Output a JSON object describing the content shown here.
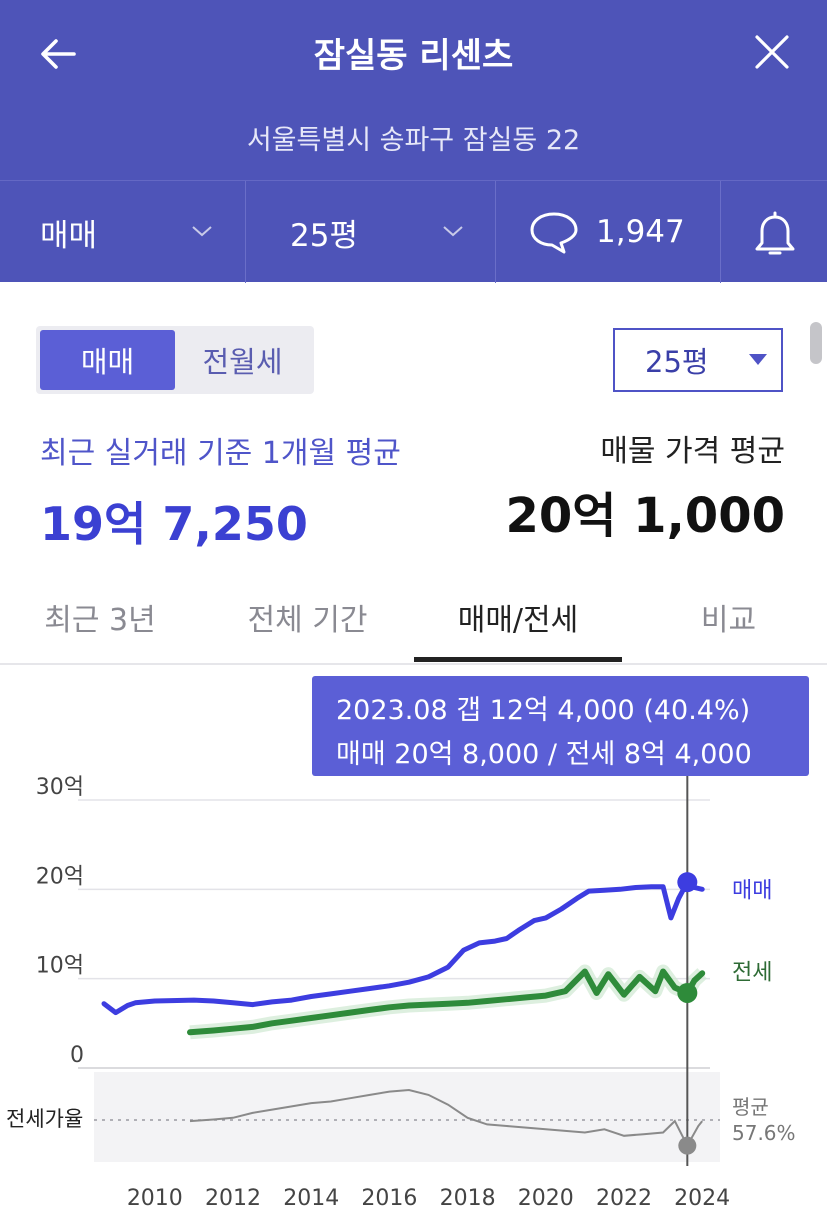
{
  "header": {
    "title": "잠실동 리센츠",
    "address": "서울특별시 송파구 잠실동 22",
    "back_icon": "arrow-left-icon",
    "close_icon": "close-icon",
    "trade_type": "매매",
    "size": "25평",
    "comment_count": "1,947",
    "comment_icon": "speech-bubble-icon",
    "bell_icon": "bell-icon",
    "bg_color": "#4e54b8"
  },
  "controls": {
    "seg_sale": "매매",
    "seg_lease": "전월세",
    "size_select": "25평"
  },
  "summary": {
    "recent_label": "최근 실거래 기준 1개월 평균",
    "recent_value": "19억 7,250",
    "listing_label": "매물 가격 평균",
    "listing_value": "20억 1,000"
  },
  "tabs": [
    {
      "label": "최근 3년"
    },
    {
      "label": "전체 기간"
    },
    {
      "label": "매매/전세",
      "active": true
    },
    {
      "label": "비교"
    }
  ],
  "tooltip": {
    "line1": "2023.08  갭 12억 4,000 (40.4%)",
    "line2": "매매 20억 8,000 / 전세 8억 4,000",
    "bg_color": "#5b5fd6"
  },
  "chart_data": {
    "type": "line",
    "y_ticks": [
      "30억",
      "20억",
      "10억",
      "0"
    ],
    "ylim": [
      0,
      30
    ],
    "x_ticks": [
      "2010",
      "2012",
      "2014",
      "2016",
      "2018",
      "2020",
      "2022",
      "2024"
    ],
    "xlim": [
      2008.7,
      2024.2
    ],
    "grid": true,
    "highlight_x": 2023.62,
    "series": [
      {
        "name": "매매",
        "color": "#3d3de0",
        "x": [
          2008.7,
          2009.0,
          2009.3,
          2009.5,
          2010.0,
          2011.0,
          2011.5,
          2012.0,
          2012.5,
          2013.0,
          2013.5,
          2014.0,
          2014.5,
          2015.0,
          2015.5,
          2016.0,
          2016.5,
          2017.0,
          2017.5,
          2017.9,
          2018.3,
          2018.7,
          2019.0,
          2019.3,
          2019.7,
          2020.0,
          2020.4,
          2020.8,
          2021.1,
          2021.5,
          2021.9,
          2022.3,
          2022.7,
          2023.0,
          2023.2,
          2023.4,
          2023.62,
          2023.8,
          2024.0
        ],
        "values": [
          7.2,
          6.2,
          7.0,
          7.3,
          7.5,
          7.6,
          7.5,
          7.3,
          7.1,
          7.4,
          7.6,
          8.0,
          8.3,
          8.6,
          8.9,
          9.2,
          9.6,
          10.2,
          11.3,
          13.2,
          14.0,
          14.2,
          14.5,
          15.4,
          16.5,
          16.8,
          17.8,
          19.0,
          19.8,
          19.9,
          20.0,
          20.2,
          20.3,
          20.3,
          16.8,
          19.0,
          20.8,
          20.2,
          20.0
        ]
      },
      {
        "name": "전세",
        "color": "#2e8b3a",
        "x": [
          2010.9,
          2011.5,
          2012.0,
          2012.5,
          2013.0,
          2013.5,
          2014.0,
          2014.5,
          2015.0,
          2015.5,
          2016.0,
          2016.5,
          2017.0,
          2017.5,
          2018.0,
          2018.5,
          2019.0,
          2019.5,
          2020.0,
          2020.5,
          2021.0,
          2021.3,
          2021.6,
          2022.0,
          2022.4,
          2022.8,
          2023.0,
          2023.3,
          2023.62,
          2023.8,
          2024.0
        ],
        "values": [
          4.0,
          4.2,
          4.4,
          4.6,
          5.0,
          5.3,
          5.6,
          5.9,
          6.2,
          6.5,
          6.8,
          7.0,
          7.1,
          7.2,
          7.3,
          7.5,
          7.7,
          7.9,
          8.1,
          8.6,
          10.8,
          8.4,
          10.5,
          8.2,
          10.2,
          8.6,
          10.8,
          9.0,
          8.4,
          9.8,
          10.6
        ]
      }
    ],
    "ratio": {
      "label": "전세가율",
      "avg_label": "평균",
      "avg_value": "57.6%",
      "x": [
        2010.9,
        2011.5,
        2012.0,
        2012.5,
        2013.0,
        2013.5,
        2014.0,
        2014.5,
        2015.0,
        2015.5,
        2016.0,
        2016.5,
        2017.0,
        2017.5,
        2018.0,
        2018.5,
        2019.0,
        2019.5,
        2020.0,
        2020.5,
        2021.0,
        2021.5,
        2022.0,
        2022.5,
        2023.0,
        2023.3,
        2023.62,
        2023.9,
        2024.0
      ],
      "values": [
        55,
        56,
        57,
        60,
        62,
        64,
        66,
        67,
        69,
        71,
        73,
        74,
        71,
        65,
        57,
        53,
        52,
        51,
        50,
        49,
        48,
        50,
        46,
        47,
        48,
        55,
        40,
        52,
        55
      ]
    }
  },
  "chart_labels": {
    "sale": "매매",
    "lease": "전세"
  }
}
